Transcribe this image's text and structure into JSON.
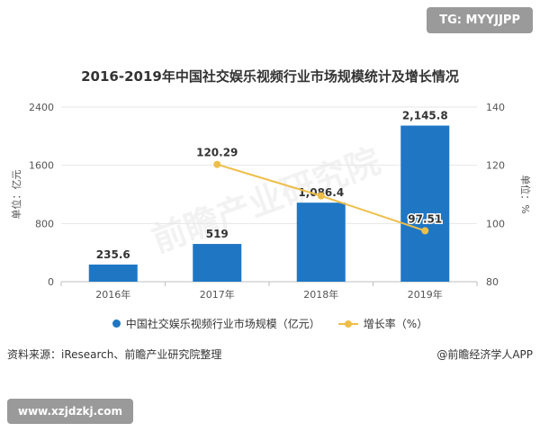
{
  "tg_badge": "TG: MYYJJPP",
  "watermark": "前瞻产业研究院",
  "chart_data": {
    "type": "bar",
    "title": "2016-2019年中国社交娱乐视频行业市场规模统计及增长情况",
    "categories": [
      "2016年",
      "2017年",
      "2018年",
      "2019年"
    ],
    "series": [
      {
        "name": "中国社交娱乐视频行业市场规模（亿元）",
        "type": "bar",
        "axis": "left",
        "values": [
          235.6,
          519,
          1086.4,
          2145.8
        ],
        "labels": [
          "235.6",
          "519",
          "1,086.4",
          "2,145.8"
        ]
      },
      {
        "name": "增长率（%）",
        "type": "line",
        "axis": "right",
        "values": [
          null,
          120.29,
          109.5,
          97.51
        ],
        "labels": [
          "",
          "120.29",
          "",
          "97.51"
        ]
      }
    ],
    "y_left": {
      "label": "单位：亿元",
      "min": 0,
      "max": 2400,
      "ticks": [
        "0",
        "800",
        "1600",
        "2400"
      ]
    },
    "y_right": {
      "label": "单位：%",
      "min": 80,
      "max": 140,
      "ticks": [
        "80",
        "100",
        "120",
        "140"
      ]
    },
    "grid": true,
    "legend_position": "bottom",
    "colors": {
      "bar": "#1f77c4",
      "line": "#eebe4a",
      "grid": "#e6e6e6",
      "axis_text": "#555555"
    }
  },
  "footer": {
    "source": "资料来源：iResearch、前瞻产业研究院整理",
    "brand": "@前瞻经济学人APP",
    "url": "www.xzjdzkj.com"
  }
}
